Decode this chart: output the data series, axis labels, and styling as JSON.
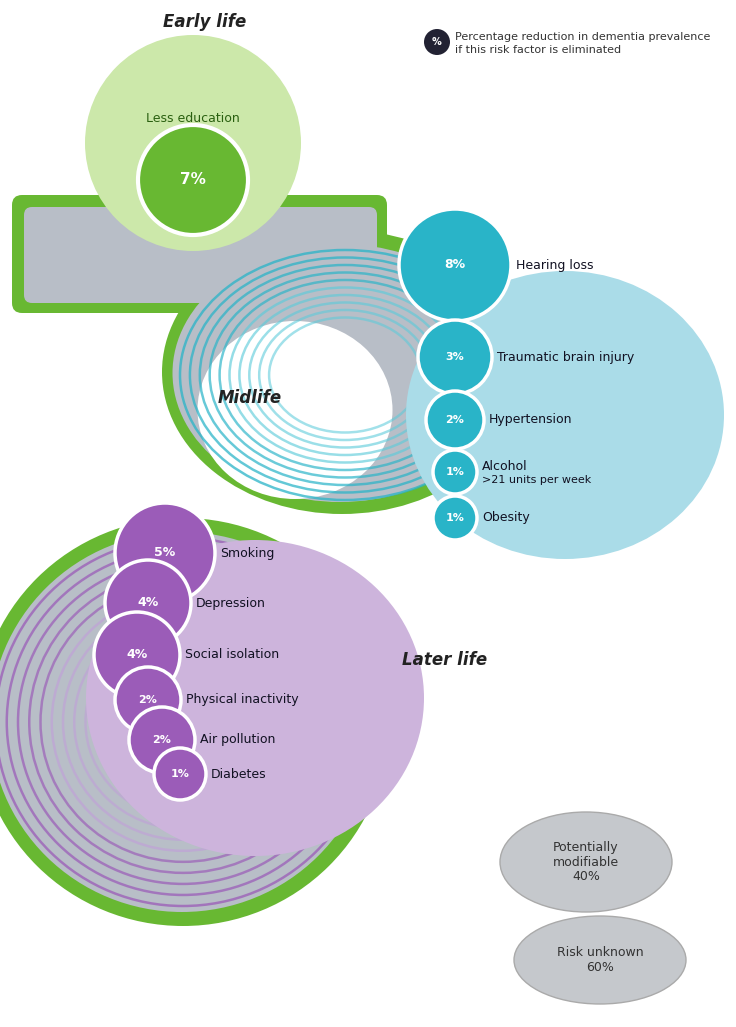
{
  "bg": "#ffffff",
  "gray": "#b8bec7",
  "green": "#68b832",
  "light_green": "#cce8aa",
  "teal": "#29b4c8",
  "light_teal": "#aadce8",
  "purple": "#9b5cb8",
  "light_purple": "#cdb4dc",
  "dark": "#222233",
  "early_label": "Early life",
  "early_bubble_label": "Less education",
  "early_pct": "7%",
  "midlife_label": "Midlife",
  "later_label": "Later life",
  "legend_text1": "Percentage reduction in dementia prevalence",
  "legend_text2": "if this risk factor is eliminated",
  "midlife_factors": [
    {
      "pct": "8%",
      "label": "Hearing loss",
      "r": 56
    },
    {
      "pct": "3%",
      "label": "Traumatic brain injury",
      "r": 37
    },
    {
      "pct": "2%",
      "label": "Hypertension",
      "r": 29
    },
    {
      "pct": "1%",
      "label": "Alcohol\n>21 units per week",
      "r": 22
    },
    {
      "pct": "1%",
      "label": "Obesity",
      "r": 22
    }
  ],
  "later_factors": [
    {
      "pct": "5%",
      "label": "Smoking",
      "r": 50
    },
    {
      "pct": "4%",
      "label": "Depression",
      "r": 43
    },
    {
      "pct": "4%",
      "label": "Social isolation",
      "r": 43
    },
    {
      "pct": "2%",
      "label": "Physical inactivity",
      "r": 33
    },
    {
      "pct": "2%",
      "label": "Air pollution",
      "r": 33
    },
    {
      "pct": "1%",
      "label": "Diabetes",
      "r": 26
    }
  ]
}
